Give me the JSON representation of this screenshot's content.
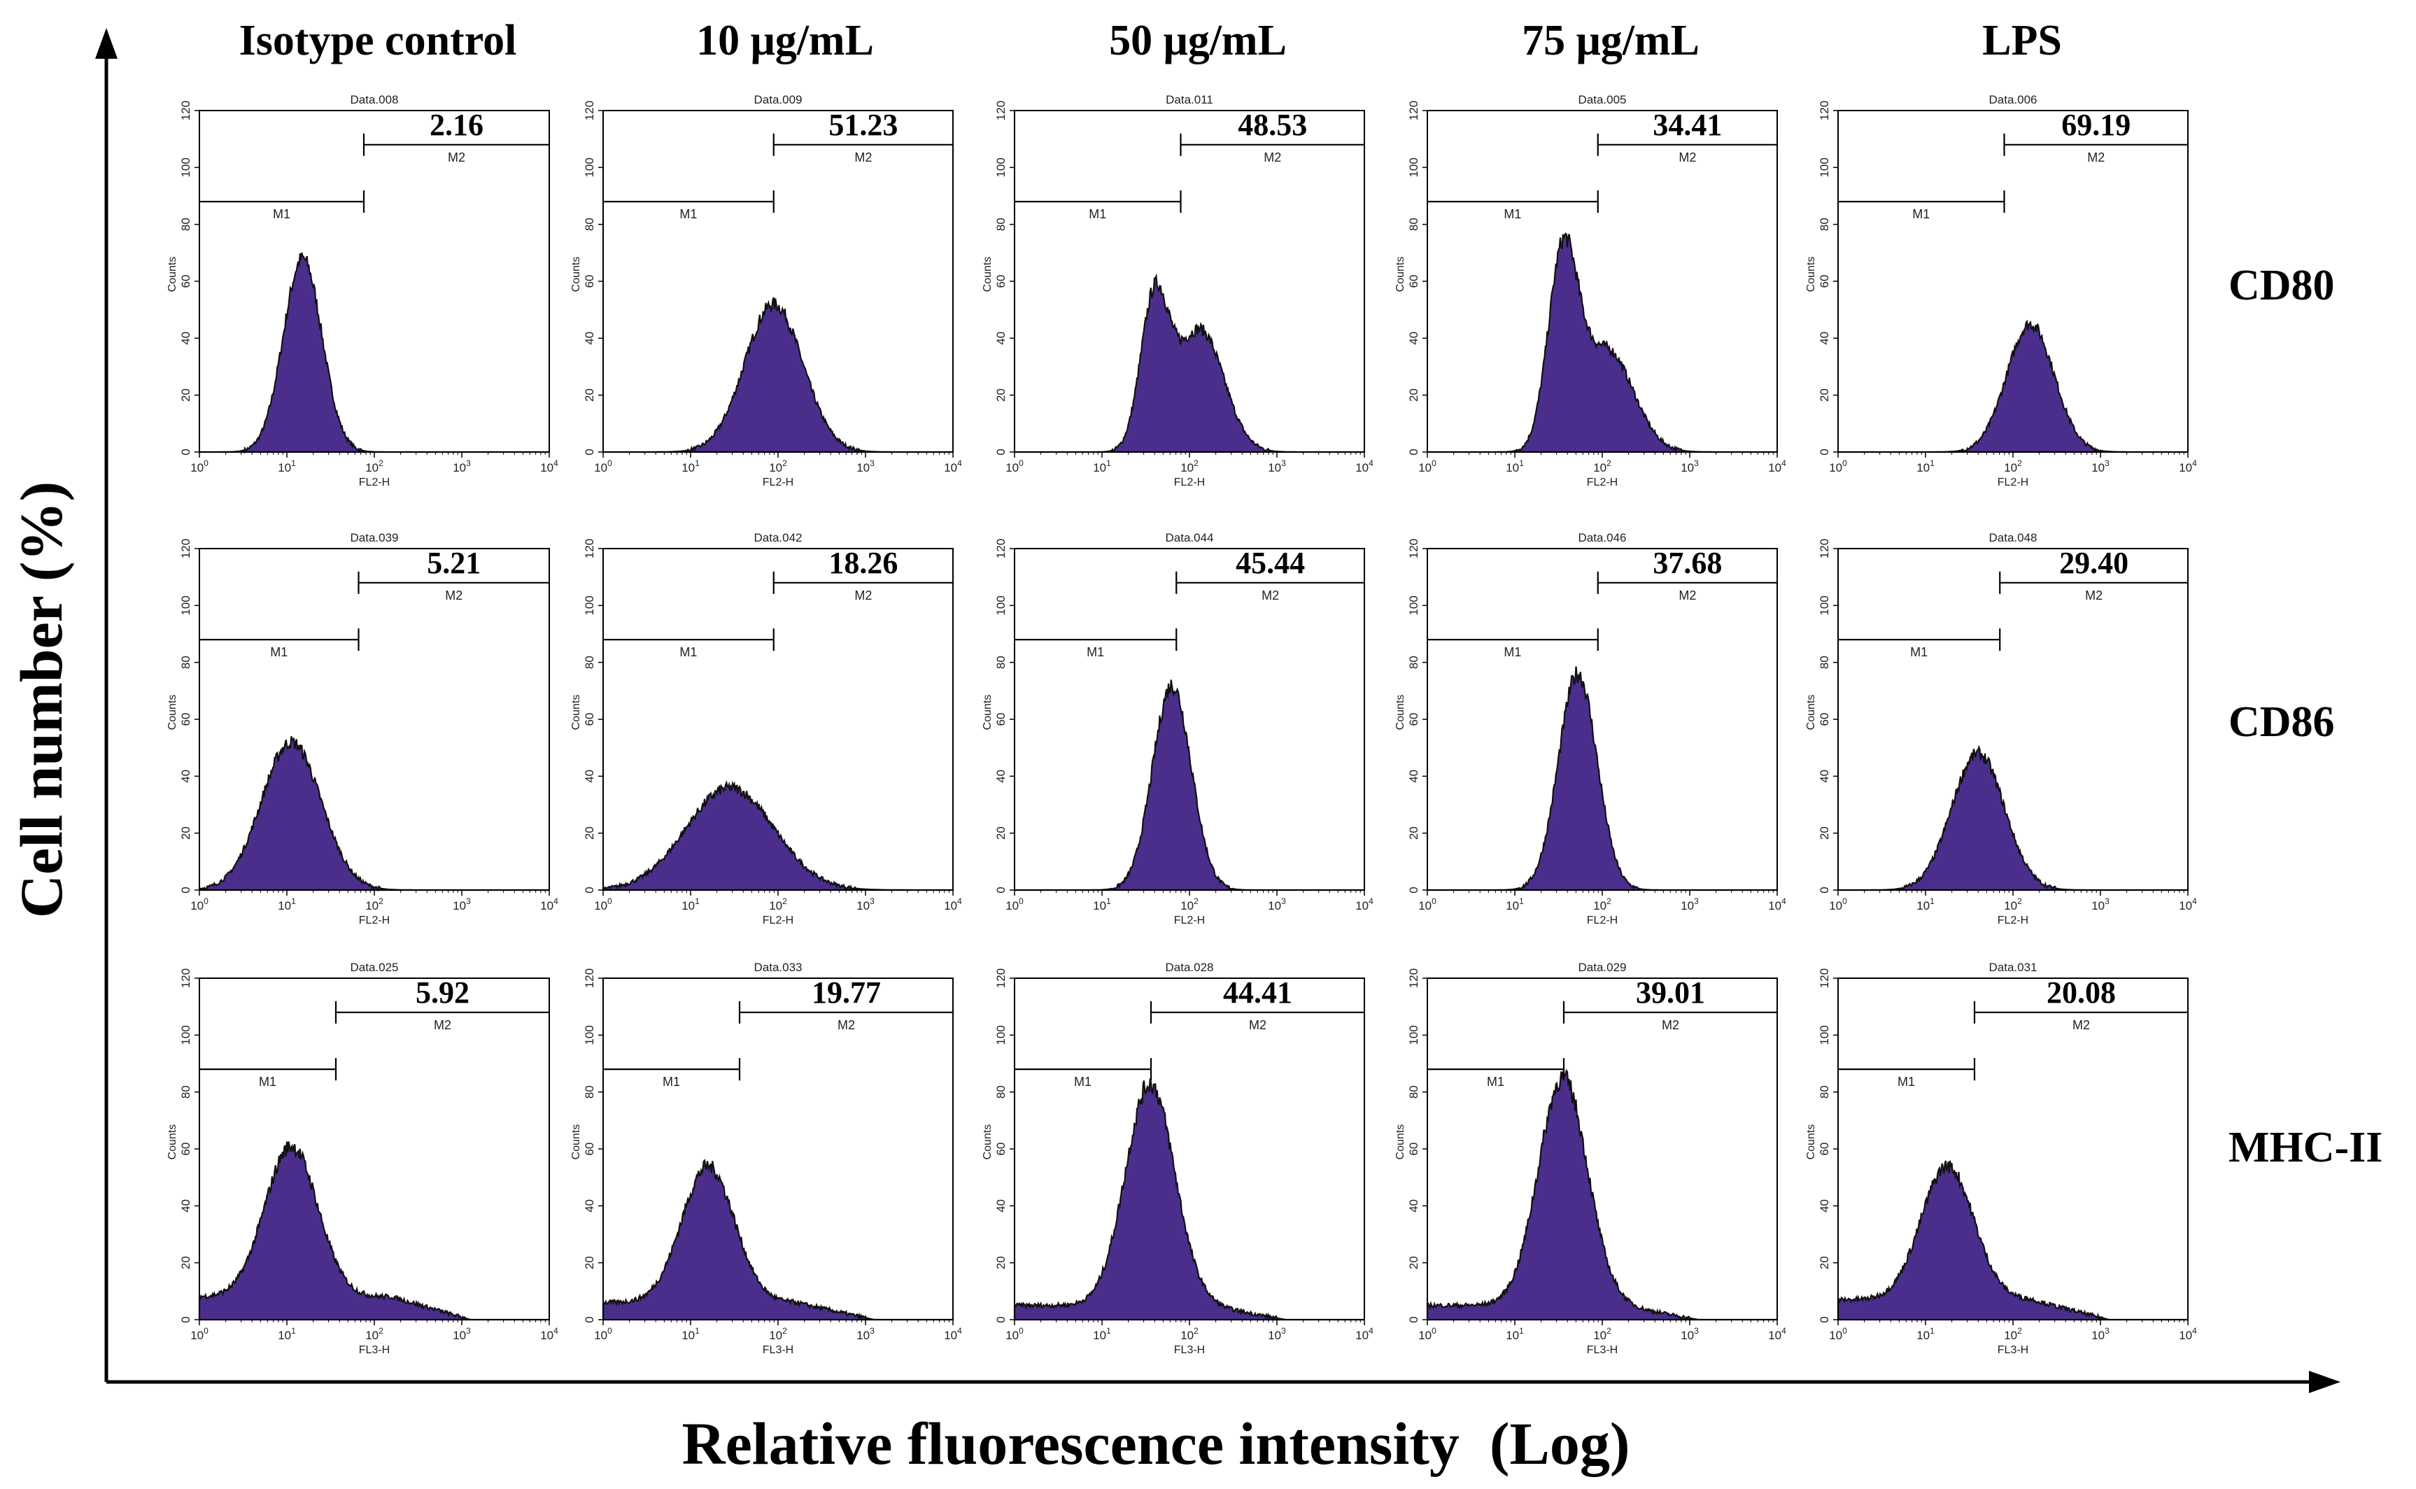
{
  "figure": {
    "y_axis_label": "Cell number (%)",
    "x_axis_label": "Relative fluorescence intensity  (Log)"
  },
  "columns": [
    "Isotype control",
    "10 μg/mL",
    "50 μg/mL",
    "75 μg/mL",
    "LPS"
  ],
  "rows": [
    "CD80",
    "CD86",
    "MHC-II"
  ],
  "colors": {
    "fill": "#4b2e8c",
    "stroke": "#111111",
    "axis": "#000000"
  },
  "chart_data": {
    "type": "histogram-grid",
    "title": "",
    "xlabel": "Relative fluorescence intensity  (Log)",
    "ylabel": "Cell number (%)",
    "panel_axes": {
      "y_label": "Counts",
      "y_ticks": [
        "0",
        "20",
        "40",
        "60",
        "80",
        "100",
        "120"
      ],
      "ylim": [
        0,
        120
      ],
      "x_ticks_exp": [
        "0",
        "1",
        "2",
        "3",
        "4"
      ],
      "x_tick_base": "10",
      "xlim_log10": [
        0,
        4
      ],
      "gate_low": "M1",
      "gate_high": "M2"
    },
    "panels": [
      {
        "row": 0,
        "col": 0,
        "file": "Data.008",
        "channel": "FL2-H",
        "value": "2.16",
        "gate_log10": 1.88,
        "peaks": [
          [
            1.18,
            68,
            0.22
          ]
        ],
        "base": 0
      },
      {
        "row": 0,
        "col": 1,
        "file": "Data.009",
        "channel": "FL2-H",
        "value": "51.23",
        "gate_log10": 1.95,
        "peaks": [
          [
            1.95,
            52,
            0.33
          ]
        ],
        "base": 0
      },
      {
        "row": 0,
        "col": 2,
        "file": "Data.011",
        "channel": "FL2-H",
        "value": "48.53",
        "gate_log10": 1.9,
        "peaks": [
          [
            1.6,
            52,
            0.16
          ],
          [
            2.12,
            43,
            0.27
          ]
        ],
        "base": 0
      },
      {
        "row": 0,
        "col": 3,
        "file": "Data.005",
        "channel": "FL2-H",
        "value": "34.41",
        "gate_log10": 1.95,
        "peaks": [
          [
            1.55,
            66,
            0.17
          ],
          [
            2.05,
            36,
            0.3
          ]
        ],
        "base": 0
      },
      {
        "row": 0,
        "col": 4,
        "file": "Data.006",
        "channel": "FL2-H",
        "value": "69.19",
        "gate_log10": 1.9,
        "peaks": [
          [
            2.2,
            45,
            0.27
          ]
        ],
        "base": 0
      },
      {
        "row": 1,
        "col": 0,
        "file": "Data.039",
        "channel": "FL2-H",
        "value": "5.21",
        "gate_log10": 1.82,
        "peaks": [
          [
            1.05,
            52,
            0.34
          ]
        ],
        "base": 0
      },
      {
        "row": 1,
        "col": 1,
        "file": "Data.042",
        "channel": "FL2-H",
        "value": "18.26",
        "gate_log10": 1.95,
        "peaks": [
          [
            1.45,
            36,
            0.5
          ]
        ],
        "base": 0
      },
      {
        "row": 1,
        "col": 2,
        "file": "Data.044",
        "channel": "FL2-H",
        "value": "45.44",
        "gate_log10": 1.85,
        "peaks": [
          [
            1.8,
            72,
            0.22
          ]
        ],
        "base": 0
      },
      {
        "row": 1,
        "col": 3,
        "file": "Data.046",
        "channel": "FL2-H",
        "value": "37.68",
        "gate_log10": 1.95,
        "peaks": [
          [
            1.72,
            76,
            0.22
          ]
        ],
        "base": 0
      },
      {
        "row": 1,
        "col": 4,
        "file": "Data.048",
        "channel": "FL2-H",
        "value": "29.40",
        "gate_log10": 1.85,
        "peaks": [
          [
            1.6,
            48,
            0.3
          ]
        ],
        "base": 0
      },
      {
        "row": 2,
        "col": 0,
        "file": "Data.025",
        "channel": "FL3-H",
        "value": "5.92",
        "gate_log10": 1.56,
        "peaks": [
          [
            1.05,
            53,
            0.3
          ]
        ],
        "base": 8
      },
      {
        "row": 2,
        "col": 1,
        "file": "Data.033",
        "channel": "FL3-H",
        "value": "19.77",
        "gate_log10": 1.56,
        "peaks": [
          [
            1.2,
            48,
            0.3
          ]
        ],
        "base": 6
      },
      {
        "row": 2,
        "col": 2,
        "file": "Data.028",
        "channel": "FL3-H",
        "value": "44.41",
        "gate_log10": 1.56,
        "peaks": [
          [
            1.55,
            78,
            0.28
          ]
        ],
        "base": 5
      },
      {
        "row": 2,
        "col": 3,
        "file": "Data.029",
        "channel": "FL3-H",
        "value": "39.01",
        "gate_log10": 1.56,
        "peaks": [
          [
            1.55,
            80,
            0.28
          ]
        ],
        "base": 5
      },
      {
        "row": 2,
        "col": 4,
        "file": "Data.031",
        "channel": "FL3-H",
        "value": "20.08",
        "gate_log10": 1.56,
        "peaks": [
          [
            1.25,
            47,
            0.3
          ]
        ],
        "base": 7
      }
    ]
  }
}
